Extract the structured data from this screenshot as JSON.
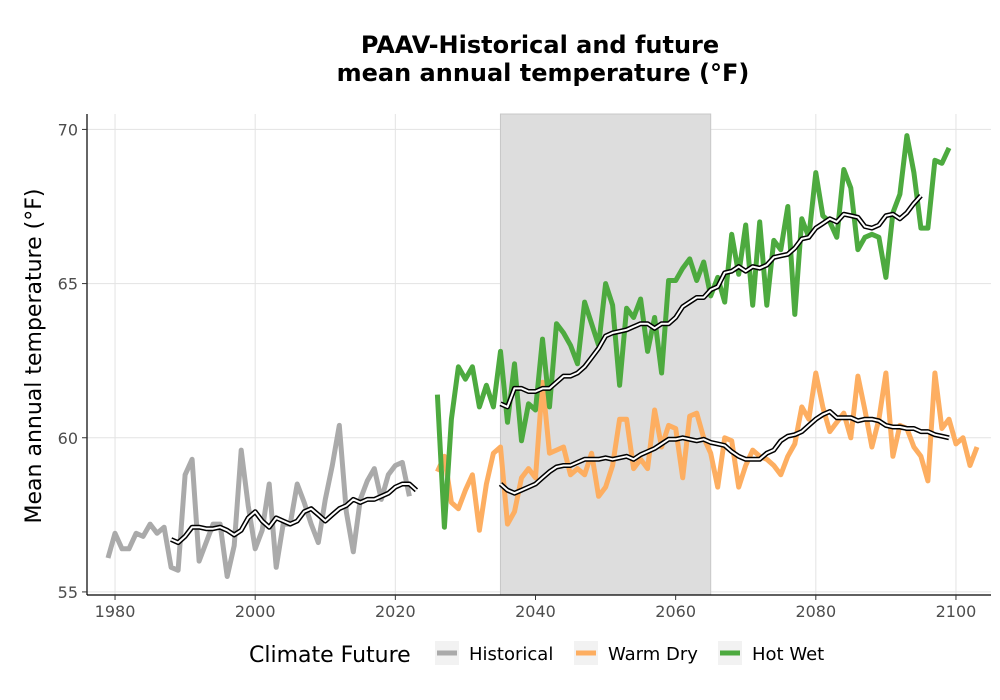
{
  "chart_data": {
    "type": "line",
    "title": [
      "PAAV-Historical and future",
      "mean annual temperature (°F)"
    ],
    "ylabel": "Mean annual temperature (°F)",
    "xlabel": "",
    "xlim": [
      1976,
      2105
    ],
    "ylim": [
      54.9,
      70.5
    ],
    "x_ticks": [
      1980,
      2000,
      2020,
      2040,
      2060,
      2080,
      2100
    ],
    "y_ticks": [
      55,
      60,
      65,
      70
    ],
    "grid": true,
    "shaded_band": {
      "x": [
        2035,
        2065
      ],
      "color": "#dddddd"
    },
    "legend": {
      "title": "Climate Future",
      "position": "bottom"
    },
    "colors": {
      "Historical": "#aaaaaa",
      "Warm Dry": "#fdae61",
      "Hot Wet": "#4daa3f"
    },
    "series": [
      {
        "name": "Historical",
        "kind": "annual",
        "x_start": 1979,
        "values": [
          56.1,
          56.9,
          56.4,
          56.4,
          56.9,
          56.8,
          57.2,
          56.9,
          57.1,
          55.8,
          55.7,
          58.8,
          59.3,
          56.0,
          56.6,
          57.2,
          57.2,
          55.5,
          56.5,
          59.6,
          57.8,
          56.4,
          57.0,
          58.5,
          55.8,
          57.2,
          57.2,
          58.5,
          57.9,
          57.2,
          56.6,
          58.0,
          59.1,
          60.4,
          57.6,
          56.3,
          58.0,
          58.6,
          59.0,
          58.0,
          58.8,
          59.1,
          59.2,
          58.1
        ]
      },
      {
        "name": "Historical",
        "kind": "rolling_mean",
        "x_start": 1988,
        "values": [
          56.7,
          56.6,
          56.8,
          57.1,
          57.1,
          57.05,
          57.05,
          57.1,
          57.0,
          56.85,
          57.0,
          57.4,
          57.6,
          57.3,
          57.1,
          57.4,
          57.3,
          57.2,
          57.3,
          57.6,
          57.7,
          57.5,
          57.3,
          57.5,
          57.7,
          57.8,
          58.0,
          57.9,
          58.0,
          58.0,
          58.1,
          58.2,
          58.4,
          58.5,
          58.5,
          58.3
        ]
      },
      {
        "name": "Warm Dry",
        "kind": "annual",
        "x_start": 2026,
        "values": [
          58.9,
          59.4,
          57.9,
          57.7,
          58.3,
          58.8,
          57.0,
          58.5,
          59.5,
          59.7,
          57.2,
          57.6,
          58.7,
          59.0,
          58.7,
          61.8,
          59.5,
          59.6,
          59.7,
          58.8,
          59.0,
          58.8,
          59.5,
          58.1,
          58.4,
          59.1,
          60.6,
          60.6,
          59.0,
          59.3,
          59.0,
          60.9,
          59.7,
          60.4,
          60.3,
          58.7,
          60.7,
          60.8,
          60.0,
          59.5,
          58.4,
          60.0,
          59.9,
          58.4,
          59.1,
          59.6,
          59.4,
          59.3,
          59.1,
          58.8,
          59.4,
          59.8,
          61.0,
          60.6,
          62.1,
          61.0,
          60.2,
          60.5,
          60.8,
          60.0,
          62.0,
          60.9,
          59.7,
          60.6,
          62.1,
          59.4,
          60.4,
          60.3,
          59.7,
          59.4,
          58.6,
          62.1,
          60.3,
          60.6,
          59.8,
          60.0,
          59.1,
          59.7
        ]
      },
      {
        "name": "Warm Dry",
        "kind": "rolling_mean",
        "x_start": 2035,
        "values": [
          58.5,
          58.3,
          58.2,
          58.3,
          58.4,
          58.5,
          58.7,
          58.9,
          59.05,
          59.1,
          59.1,
          59.2,
          59.3,
          59.3,
          59.3,
          59.35,
          59.3,
          59.35,
          59.4,
          59.3,
          59.45,
          59.55,
          59.65,
          59.8,
          59.95,
          59.95,
          60.0,
          59.95,
          59.9,
          59.95,
          59.85,
          59.8,
          59.75,
          59.55,
          59.4,
          59.3,
          59.3,
          59.3,
          59.5,
          59.6,
          59.9,
          60.05,
          60.1,
          60.2,
          60.4,
          60.6,
          60.75,
          60.85,
          60.65,
          60.65,
          60.65,
          60.55,
          60.6,
          60.6,
          60.55,
          60.4,
          60.35,
          60.35,
          60.3,
          60.3,
          60.2,
          60.2,
          60.1,
          60.05,
          60.0
        ]
      },
      {
        "name": "Hot Wet",
        "kind": "annual",
        "x_start": 2026,
        "values": [
          61.4,
          57.1,
          60.6,
          62.3,
          61.9,
          62.3,
          61.0,
          61.7,
          61.0,
          62.8,
          60.5,
          62.4,
          59.9,
          61.1,
          60.9,
          63.2,
          61.0,
          63.7,
          63.4,
          63.0,
          62.4,
          64.4,
          63.7,
          63.0,
          65.0,
          64.3,
          61.7,
          64.2,
          63.9,
          64.5,
          62.8,
          63.9,
          62.1,
          65.1,
          65.1,
          65.5,
          65.8,
          65.1,
          65.7,
          64.6,
          65.2,
          64.4,
          66.6,
          65.3,
          66.9,
          64.3,
          67.0,
          64.3,
          66.4,
          66.1,
          67.5,
          64.0,
          67.1,
          66.5,
          68.6,
          67.2,
          67.0,
          66.5,
          68.7,
          68.1,
          66.1,
          66.5,
          66.6,
          66.5,
          65.2,
          67.3,
          67.9,
          69.8,
          68.6,
          66.8,
          66.8,
          69.0,
          68.9,
          69.4
        ]
      },
      {
        "name": "Hot Wet",
        "kind": "rolling_mean",
        "x_start": 2035,
        "values": [
          61.1,
          61.0,
          61.6,
          61.6,
          61.5,
          61.5,
          61.6,
          61.6,
          61.8,
          62.0,
          62.0,
          62.1,
          62.3,
          62.6,
          62.9,
          63.3,
          63.4,
          63.45,
          63.5,
          63.6,
          63.7,
          63.7,
          63.55,
          63.7,
          63.7,
          63.9,
          64.25,
          64.4,
          64.55,
          64.55,
          64.8,
          64.9,
          65.35,
          65.4,
          65.55,
          65.4,
          65.55,
          65.5,
          65.6,
          65.85,
          65.9,
          65.95,
          66.15,
          66.45,
          66.5,
          66.8,
          66.95,
          67.1,
          67.0,
          67.25,
          67.2,
          67.15,
          66.85,
          66.8,
          66.9,
          67.2,
          67.25,
          67.1,
          67.3,
          67.6,
          67.85
        ]
      }
    ]
  }
}
